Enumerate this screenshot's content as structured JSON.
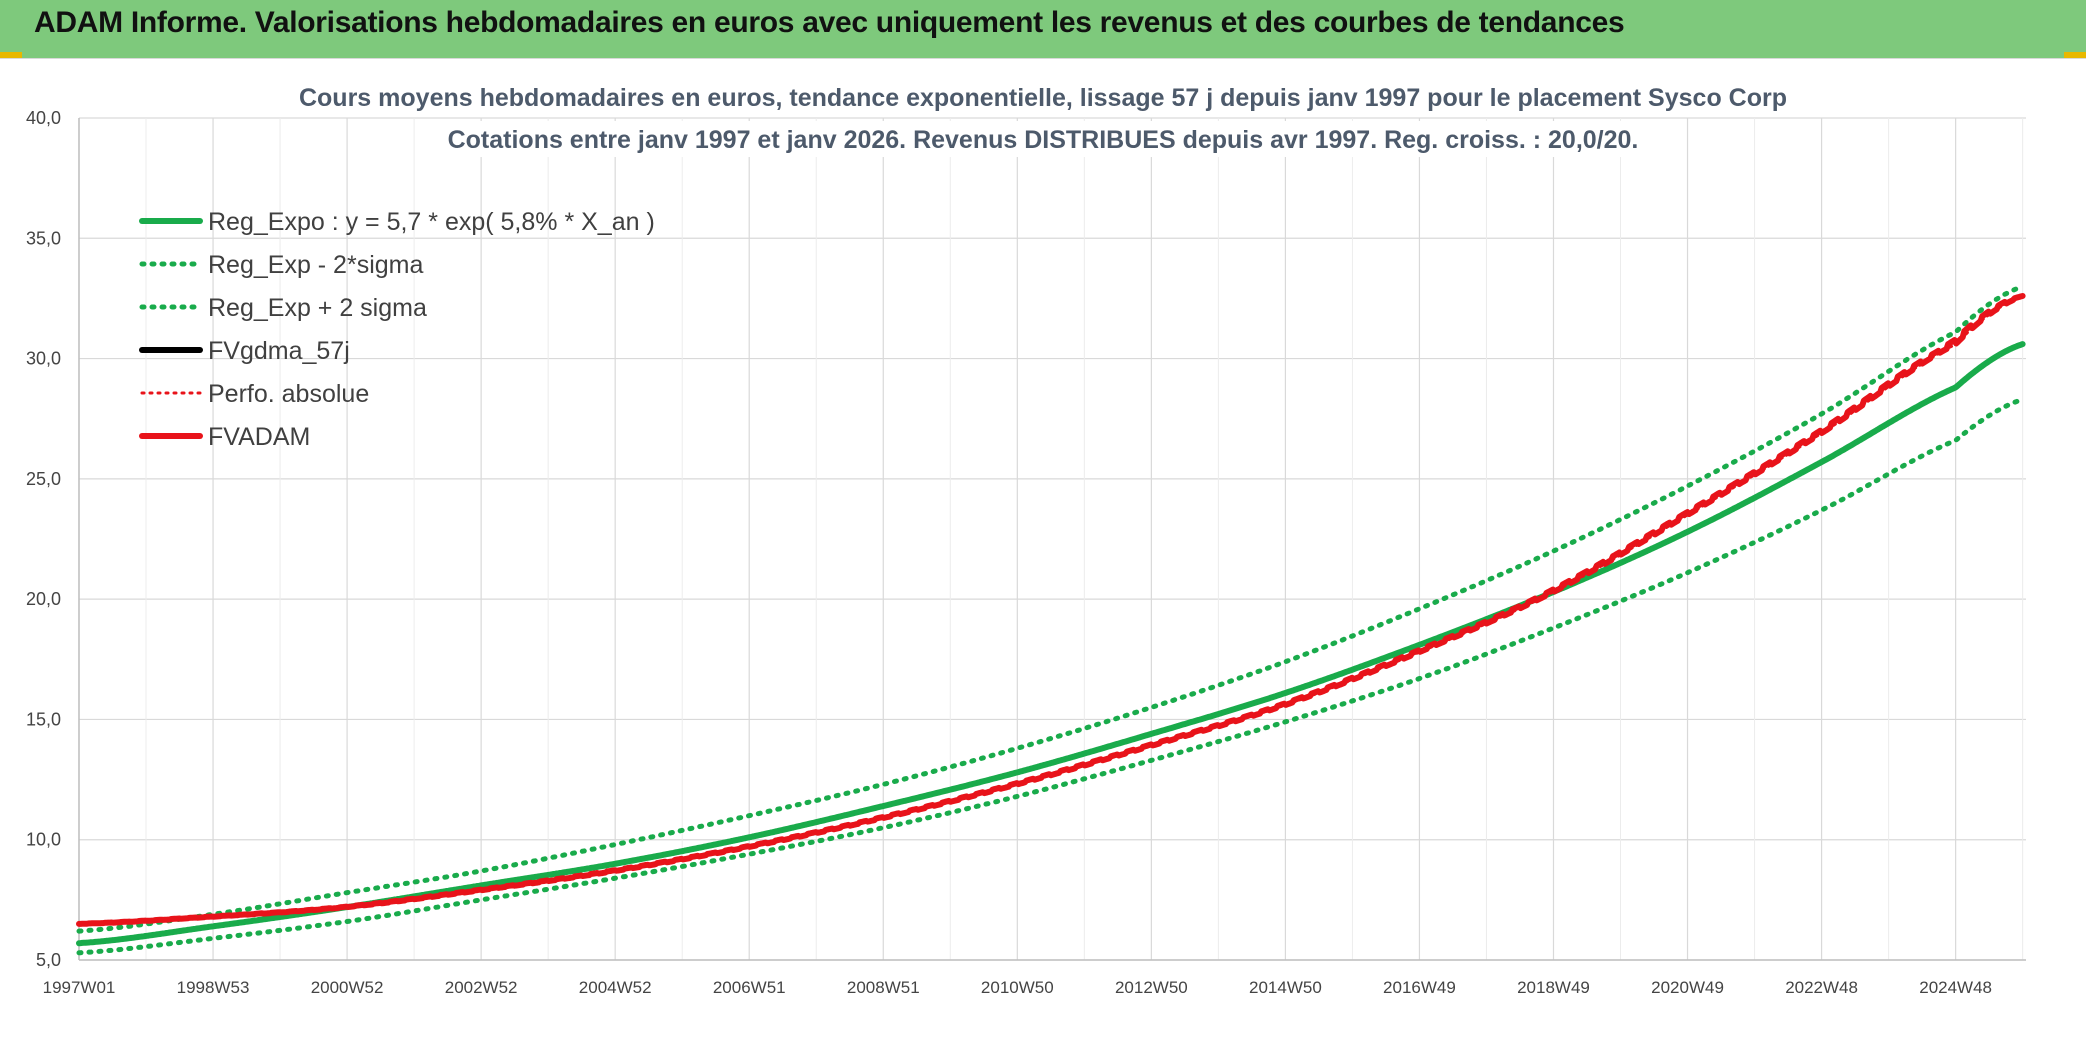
{
  "header": {
    "title": "ADAM Informe. Valorisations hebdomadaires en euros avec uniquement les revenus et des courbes de tendances"
  },
  "colors": {
    "header_bg": "#7ec97c",
    "green": "#19ab4b",
    "red": "#e8131a",
    "black": "#000000",
    "grid": "#d9d9d9"
  },
  "chart_data": {
    "type": "line",
    "title_lines": [
      "Cours moyens hebdomadaires en euros, tendance exponentielle, lissage 57 j depuis janv 1997 pour le placement Sysco Corp",
      "Cotations entre janv 1997 et janv 2026. Revenus DISTRIBUES depuis avr 1997. Reg. croiss. : 20,0/20."
    ],
    "xlabel": "",
    "ylabel": "",
    "ylim": [
      5,
      40
    ],
    "xlim": [
      1997.0,
      2026.05
    ],
    "y_ticks": [
      "5,0",
      "10,0",
      "15,0",
      "20,0",
      "25,0",
      "30,0",
      "35,0",
      "40,0"
    ],
    "y_tick_values": [
      5,
      10,
      15,
      20,
      25,
      30,
      35,
      40
    ],
    "x_tick_labels": [
      "1997W01",
      "1998W53",
      "2000W52",
      "2002W52",
      "2004W52",
      "2006W51",
      "2008W51",
      "2010W50",
      "2012W50",
      "2014W50",
      "2016W49",
      "2018W49",
      "2020W49",
      "2022W48",
      "2024W48"
    ],
    "x_tick_values": [
      1997.0,
      1999.0,
      2001.0,
      2003.0,
      2005.0,
      2007.0,
      2009.0,
      2011.0,
      2013.0,
      2015.0,
      2017.0,
      2019.0,
      2021.0,
      2023.0,
      2025.0
    ],
    "grid": true,
    "legend_position": "top-left",
    "legend": [
      {
        "label": "Reg_Expo : y = 5,7 * exp( 5,8% *  X_an )",
        "color": "#19ab4b",
        "style": "solid"
      },
      {
        "label": "Reg_Exp - 2*sigma",
        "color": "#19ab4b",
        "style": "dotted"
      },
      {
        "label": "Reg_Exp + 2 sigma",
        "color": "#19ab4b",
        "style": "dotted"
      },
      {
        "label": "FVgdma_57j",
        "color": "#000000",
        "style": "solid"
      },
      {
        "label": "Perfo. absolue",
        "color": "#e8131a",
        "style": "dotted"
      },
      {
        "label": "FVADAM",
        "color": "#e8131a",
        "style": "solid"
      }
    ],
    "x": [
      1997,
      1999,
      2001,
      2003,
      2005,
      2007,
      2009,
      2011,
      2013,
      2015,
      2017,
      2019,
      2021,
      2023,
      2025,
      2026
    ],
    "series": [
      {
        "name": "Reg_Expo : y = 5,7 * exp( 5,8% *  X_an )",
        "values": [
          5.7,
          6.4,
          7.2,
          8.1,
          9.0,
          10.1,
          11.4,
          12.8,
          14.4,
          16.1,
          18.1,
          20.3,
          22.8,
          25.7,
          28.8,
          30.6
        ]
      },
      {
        "name": "Reg_Exp - 2*sigma",
        "values": [
          5.3,
          5.9,
          6.6,
          7.5,
          8.4,
          9.4,
          10.5,
          11.8,
          13.3,
          14.9,
          16.7,
          18.8,
          21.1,
          23.7,
          26.6,
          28.3
        ]
      },
      {
        "name": "Reg_Exp + 2 sigma",
        "values": [
          6.2,
          6.9,
          7.8,
          8.7,
          9.8,
          11.0,
          12.3,
          13.8,
          15.5,
          17.4,
          19.6,
          22.0,
          24.7,
          27.7,
          31.1,
          33.0
        ]
      },
      {
        "name": "Perfo. absolue",
        "values": [
          6.5,
          6.8,
          7.2,
          7.9,
          8.7,
          9.7,
          10.9,
          12.3,
          13.9,
          15.6,
          17.8,
          20.3,
          23.5,
          26.9,
          30.6,
          32.6
        ]
      },
      {
        "name": "FVADAM",
        "values": [
          6.5,
          6.8,
          7.2,
          7.9,
          8.7,
          9.7,
          10.9,
          12.3,
          13.9,
          15.6,
          17.8,
          20.3,
          23.5,
          26.9,
          30.6,
          32.6
        ]
      }
    ]
  }
}
